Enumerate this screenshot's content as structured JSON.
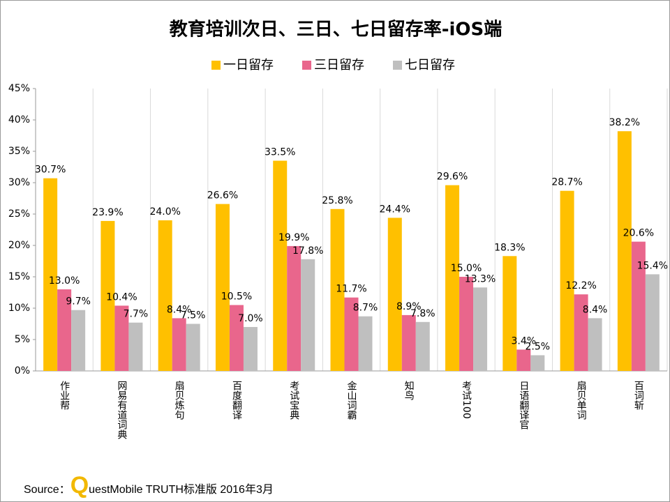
{
  "chart_data": {
    "type": "bar",
    "title": "教育培训次日、三日、七日留存率-iOS端",
    "categories": [
      "作业帮",
      "网易有道词典",
      "扇贝炼句",
      "百度翻译",
      "考试宝典",
      "金山词霸",
      "知鸟",
      "考试100",
      "日语翻译官",
      "扇贝单词",
      "百词斩"
    ],
    "series": [
      {
        "name": "一日留存",
        "color": "#FFC000",
        "values": [
          30.7,
          23.9,
          24.0,
          26.6,
          33.5,
          25.8,
          24.4,
          29.6,
          18.3,
          28.7,
          38.2
        ],
        "value_labels": [
          "30.7%",
          "23.9%",
          "24.0%",
          "26.6%",
          "33.5%",
          "25.8%",
          "24.4%",
          "29.6%",
          "18.3%",
          "28.7%",
          "38.2%"
        ]
      },
      {
        "name": "三日留存",
        "color": "#E9668C",
        "values": [
          13.0,
          10.4,
          8.4,
          10.5,
          19.9,
          11.7,
          8.9,
          15.0,
          3.4,
          12.2,
          20.6
        ],
        "value_labels": [
          "13.0%",
          "10.4%",
          "8.4%",
          "10.5%",
          "19.9%",
          "11.7%",
          "8.9%",
          "15.0%",
          "3.4%",
          "12.2%",
          "20.6%"
        ]
      },
      {
        "name": "七日留存",
        "color": "#BFBFBF",
        "values": [
          9.7,
          7.7,
          7.5,
          7.0,
          17.8,
          8.7,
          7.8,
          13.3,
          2.5,
          8.4,
          15.4
        ],
        "value_labels": [
          "9.7%",
          "7.7%",
          "7.5%",
          "7.0%",
          "17.8%",
          "8.7%",
          "7.8%",
          "13.3%",
          "2.5%",
          "8.4%",
          "15.4%"
        ]
      }
    ],
    "ylim": [
      0,
      45
    ],
    "yticks": [
      {
        "value": 0,
        "label": "0%"
      },
      {
        "value": 5,
        "label": "5%"
      },
      {
        "value": 10,
        "label": "10%"
      },
      {
        "value": 15,
        "label": "15%"
      },
      {
        "value": 20,
        "label": "20%"
      },
      {
        "value": 25,
        "label": "25%"
      },
      {
        "value": 30,
        "label": "30%"
      },
      {
        "value": 35,
        "label": "35%"
      },
      {
        "value": 40,
        "label": "40%"
      },
      {
        "value": 45,
        "label": "45%"
      }
    ],
    "grid": true,
    "legend": "top",
    "source_label": "Source：",
    "source_text": "QuestMobile TRUTH标准版 2016年3月"
  }
}
